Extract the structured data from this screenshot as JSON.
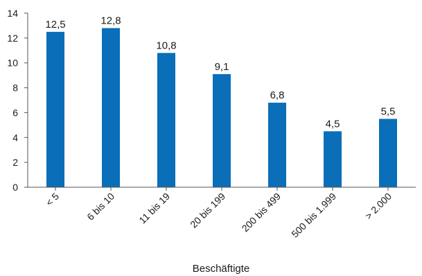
{
  "chart_data": {
    "type": "bar",
    "categories": [
      "< 5",
      "6 bis 10",
      "11 bis 19",
      "20 bis 199",
      "200 bis 499",
      "500 bis 1.999",
      "> 2.000"
    ],
    "values": [
      12.5,
      12.8,
      10.8,
      9.1,
      6.8,
      4.5,
      5.5
    ],
    "value_labels": [
      "12,5",
      "12,8",
      "10,8",
      "9,1",
      "6,8",
      "4,5",
      "5,5"
    ],
    "y_ticks": [
      0,
      2,
      4,
      6,
      8,
      10,
      12,
      14
    ],
    "ylim": [
      0,
      14
    ],
    "title": "",
    "xlabel": "Beschäftigte",
    "ylabel": "",
    "grid": false,
    "legend": "none",
    "bar_color": "#0a6eb8",
    "axis_color": "#555555"
  }
}
